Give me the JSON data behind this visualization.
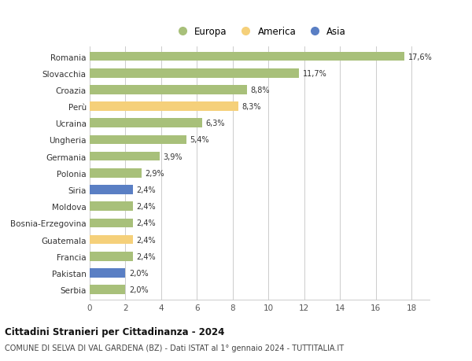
{
  "countries": [
    "Romania",
    "Slovacchia",
    "Croazia",
    "Perù",
    "Ucraina",
    "Ungheria",
    "Germania",
    "Polonia",
    "Siria",
    "Moldova",
    "Bosnia-Erzegovina",
    "Guatemala",
    "Francia",
    "Pakistan",
    "Serbia"
  ],
  "values": [
    17.6,
    11.7,
    8.8,
    8.3,
    6.3,
    5.4,
    3.9,
    2.9,
    2.4,
    2.4,
    2.4,
    2.4,
    2.4,
    2.0,
    2.0
  ],
  "labels": [
    "17,6%",
    "11,7%",
    "8,8%",
    "8,3%",
    "6,3%",
    "5,4%",
    "3,9%",
    "2,9%",
    "2,4%",
    "2,4%",
    "2,4%",
    "2,4%",
    "2,4%",
    "2,0%",
    "2,0%"
  ],
  "continents": [
    "Europa",
    "Europa",
    "Europa",
    "America",
    "Europa",
    "Europa",
    "Europa",
    "Europa",
    "Asia",
    "Europa",
    "Europa",
    "America",
    "Europa",
    "Asia",
    "Europa"
  ],
  "colors": {
    "Europa": "#a8c07a",
    "America": "#f5d07a",
    "Asia": "#5a7fc4"
  },
  "legend_labels": [
    "Europa",
    "America",
    "Asia"
  ],
  "legend_colors": [
    "#a8c07a",
    "#f5d07a",
    "#5a7fc4"
  ],
  "title1": "Cittadini Stranieri per Cittadinanza - 2024",
  "title2": "COMUNE DI SELVA DI VAL GARDENA (BZ) - Dati ISTAT al 1° gennaio 2024 - TUTTITALIA.IT",
  "xlim": [
    0,
    19
  ],
  "xticks": [
    0,
    2,
    4,
    6,
    8,
    10,
    12,
    14,
    16,
    18
  ],
  "background_color": "#ffffff",
  "grid_color": "#cccccc",
  "bar_height": 0.55
}
